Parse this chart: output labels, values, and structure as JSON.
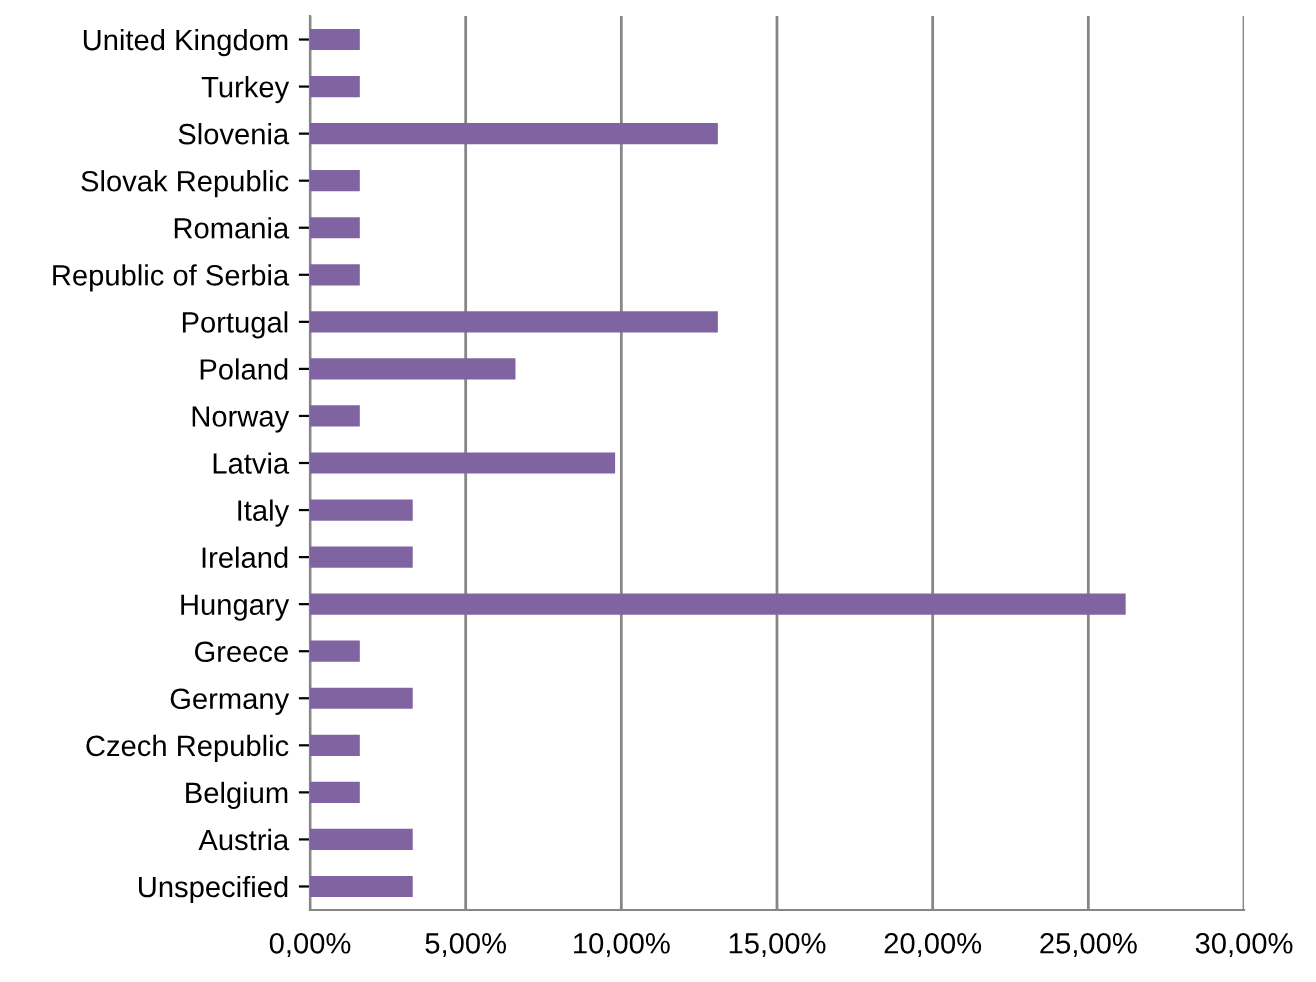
{
  "chart_data": {
    "type": "bar",
    "orientation": "horizontal",
    "categories": [
      "United Kingdom",
      "Turkey",
      "Slovenia",
      "Slovak Republic",
      "Romania",
      "Republic of Serbia",
      "Portugal",
      "Poland",
      "Norway",
      "Latvia",
      "Italy",
      "Ireland",
      "Hungary",
      "Greece",
      "Germany",
      "Czech Republic",
      "Belgium",
      "Austria",
      "Unspecified"
    ],
    "values": [
      1.6,
      1.6,
      13.1,
      1.6,
      1.6,
      1.6,
      13.1,
      6.6,
      1.6,
      9.8,
      3.3,
      3.3,
      26.2,
      1.6,
      3.3,
      1.6,
      1.6,
      3.3,
      3.3
    ],
    "color": "#8064a2",
    "xlim": [
      0,
      30
    ],
    "xticks": [
      {
        "value": 0,
        "label": "0,00%"
      },
      {
        "value": 5,
        "label": "5,00%"
      },
      {
        "value": 10,
        "label": "10,00%"
      },
      {
        "value": 15,
        "label": "15,00%"
      },
      {
        "value": 20,
        "label": "20,00%"
      },
      {
        "value": 25,
        "label": "25,00%"
      },
      {
        "value": 30,
        "label": "30,00%"
      }
    ],
    "grid": "x",
    "legend": false
  }
}
